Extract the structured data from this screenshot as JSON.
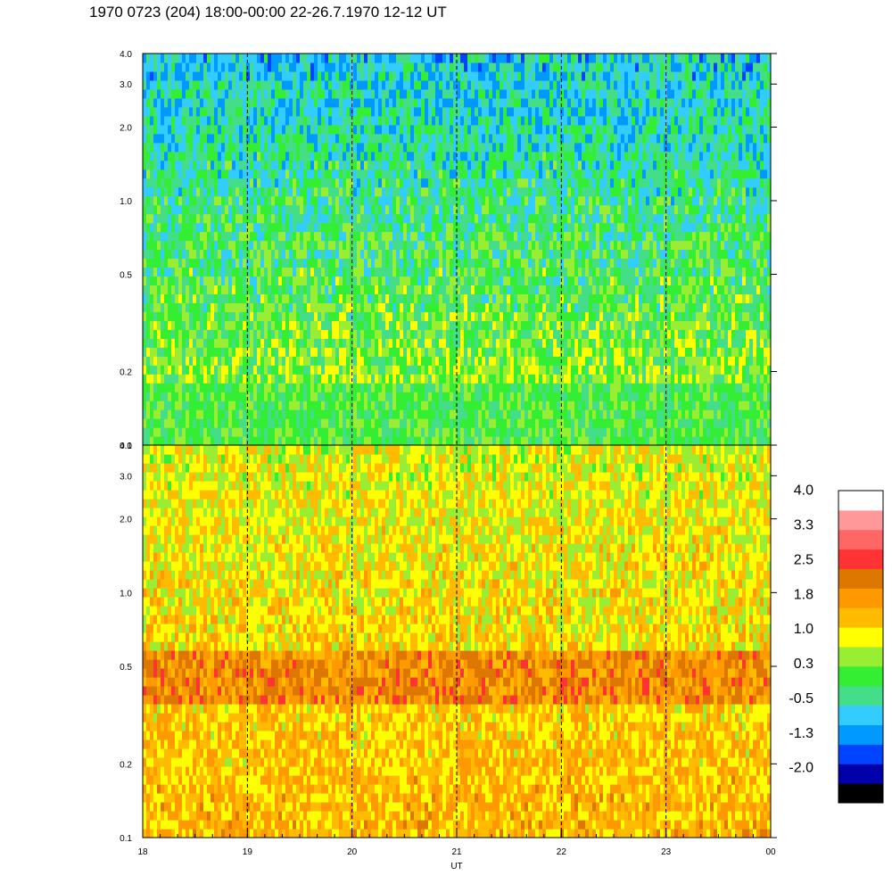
{
  "header": {
    "title": "1970 0723 (204) 18:00-00:00 22-26.7.1970  12-12 UT"
  },
  "chart_data": {
    "type": "heatmap",
    "title": "1970 0723 (204) 18:00-00:00 22-26.7.1970  12-12 UT",
    "xlabel": "UT",
    "x_ticks": [
      "18",
      "19",
      "20",
      "21",
      "22",
      "23",
      "00"
    ],
    "x_range": [
      18,
      24
    ],
    "y_scale": "log",
    "y_range": [
      0.1,
      4.0
    ],
    "y_ticks": [
      "0.1",
      "0.2",
      "0.5",
      "1.0",
      "2.0",
      "3.0",
      "4.0"
    ],
    "grid": "dashed vertical lines at hour marks",
    "panels": [
      {
        "name": "upper",
        "y_ticks": [
          "0.1",
          "0.2",
          "0.5",
          "1.0",
          "2.0",
          "3.0",
          "4.0"
        ],
        "dominant_colors": [
          "#33ee33",
          "#99ee33",
          "#ffff00",
          "#33ccee"
        ],
        "typical_level_low_freq": 0.8,
        "typical_level_high_freq": 0.0
      },
      {
        "name": "lower",
        "y_ticks": [
          "0.1",
          "0.2",
          "0.5",
          "1.0",
          "2.0",
          "3.0",
          "4.0"
        ],
        "dominant_colors": [
          "#ff9900",
          "#ffbb00",
          "#dd7700",
          "#ffff00"
        ],
        "band_center": 0.45,
        "band_level": 2.3,
        "typical_level": 1.6
      }
    ],
    "colorbar": {
      "labels": [
        "4.0",
        "3.3",
        "2.5",
        "1.8",
        "1.0",
        "0.3",
        "-0.5",
        "-1.3",
        "-2.0"
      ],
      "colors": [
        "#000000",
        "#0000aa",
        "#0044ff",
        "#0099ff",
        "#33ccff",
        "#44dd88",
        "#33ee33",
        "#99ee33",
        "#ffff00",
        "#ffbb00",
        "#ff9900",
        "#dd7700",
        "#ff3333",
        "#ff6666",
        "#ff9999",
        "#ffffff"
      ]
    }
  }
}
